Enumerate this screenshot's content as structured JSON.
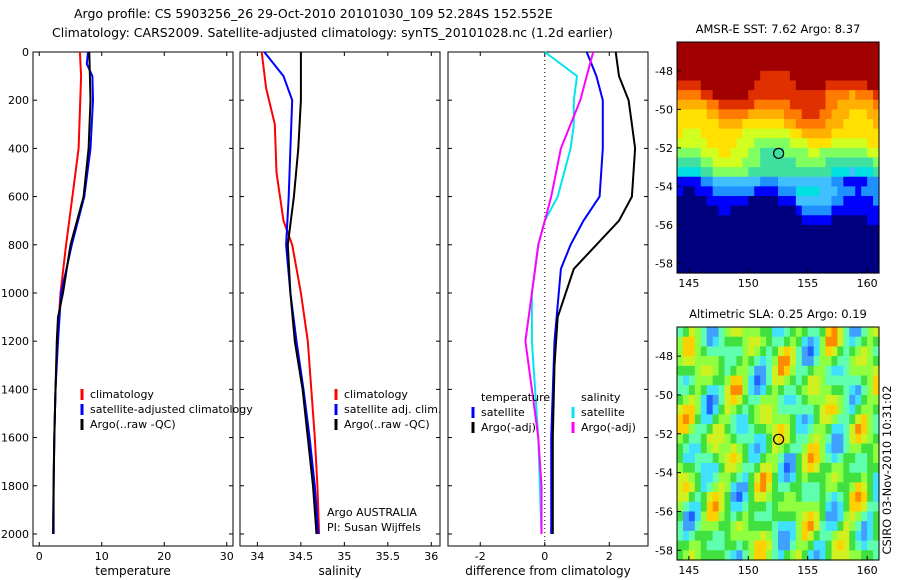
{
  "title": {
    "line1": "Argo profile: CS 5903256_26 29-Oct-2010 20101030_109 52.284S 152.552E",
    "line2": "Climatology: CARS2009. Satellite-adjusted climatology: synTS_20101028.nc (1.2d earlier)"
  },
  "chart_data": [
    {
      "type": "line",
      "xlabel": "temperature",
      "xlim": [
        -1,
        31
      ],
      "xticks": [
        0,
        10,
        20,
        30
      ],
      "ylim": [
        2050,
        0
      ],
      "yticks": [
        0,
        200,
        400,
        600,
        800,
        1000,
        1200,
        1400,
        1600,
        1800,
        2000
      ],
      "y_inverted": true,
      "legend": {
        "placement": "lower-right",
        "entries": [
          "climatology",
          "satellite-adjusted climatology",
          "Argo(..raw -QC)"
        ]
      },
      "series": [
        {
          "name": "climatology",
          "color": "#ff0000",
          "points": [
            [
              6.5,
              0
            ],
            [
              6.7,
              100
            ],
            [
              6.3,
              400
            ],
            [
              5.3,
              600
            ],
            [
              4.3,
              800
            ],
            [
              3.4,
              1000
            ],
            [
              2.9,
              1200
            ],
            [
              2.6,
              1400
            ],
            [
              2.4,
              1600
            ],
            [
              2.3,
              1800
            ],
            [
              2.2,
              2000
            ]
          ]
        },
        {
          "name": "satellite-adjusted climatology",
          "color": "#0000ff",
          "points": [
            [
              7.8,
              0
            ],
            [
              7.6,
              50
            ],
            [
              8.5,
              100
            ],
            [
              8.6,
              200
            ],
            [
              8.2,
              400
            ],
            [
              7.2,
              600
            ],
            [
              5.2,
              800
            ],
            [
              3.5,
              1000
            ],
            [
              3.0,
              1200
            ],
            [
              2.6,
              1400
            ],
            [
              2.4,
              1600
            ],
            [
              2.3,
              1800
            ],
            [
              2.2,
              2000
            ]
          ]
        },
        {
          "name": "Argo(..raw -QC)",
          "color": "#000000",
          "points": [
            [
              8.0,
              0
            ],
            [
              8.1,
              100
            ],
            [
              8.2,
              200
            ],
            [
              7.9,
              400
            ],
            [
              7.1,
              600
            ],
            [
              5.0,
              800
            ],
            [
              3.8,
              1000
            ],
            [
              3.0,
              1100
            ],
            [
              2.8,
              1200
            ],
            [
              2.6,
              1400
            ],
            [
              2.4,
              1600
            ],
            [
              2.3,
              1800
            ],
            [
              2.3,
              2000
            ]
          ]
        }
      ]
    },
    {
      "type": "line",
      "xlabel": "salinity",
      "xlim": [
        33.8,
        36.1
      ],
      "xticks": [
        34,
        34.5,
        35,
        35.5,
        36
      ],
      "ylim": [
        2050,
        0
      ],
      "y_inverted": true,
      "annotation": [
        "Argo AUSTRALIA",
        "PI: Susan Wijffels"
      ],
      "legend": {
        "placement": "lower-right",
        "entries": [
          "climatology",
          "satellite adj. clim.",
          "Argo(..raw -QC)"
        ]
      },
      "series": [
        {
          "name": "climatology",
          "color": "#ff0000",
          "points": [
            [
              34.05,
              0
            ],
            [
              34.1,
              150
            ],
            [
              34.2,
              300
            ],
            [
              34.22,
              500
            ],
            [
              34.3,
              700
            ],
            [
              34.4,
              800
            ],
            [
              34.5,
              1000
            ],
            [
              34.58,
              1200
            ],
            [
              34.62,
              1400
            ],
            [
              34.66,
              1600
            ],
            [
              34.69,
              1800
            ],
            [
              34.71,
              2000
            ]
          ]
        },
        {
          "name": "satellite adj. clim.",
          "color": "#0000ff",
          "points": [
            [
              34.08,
              0
            ],
            [
              34.3,
              100
            ],
            [
              34.4,
              200
            ],
            [
              34.38,
              400
            ],
            [
              34.36,
              600
            ],
            [
              34.33,
              800
            ],
            [
              34.38,
              1000
            ],
            [
              34.45,
              1200
            ],
            [
              34.53,
              1400
            ],
            [
              34.6,
              1600
            ],
            [
              34.66,
              1800
            ],
            [
              34.7,
              2000
            ]
          ]
        },
        {
          "name": "Argo(..raw -QC)",
          "color": "#000000",
          "points": [
            [
              34.5,
              0
            ],
            [
              34.5,
              200
            ],
            [
              34.47,
              400
            ],
            [
              34.42,
              600
            ],
            [
              34.35,
              800
            ],
            [
              34.38,
              1000
            ],
            [
              34.43,
              1200
            ],
            [
              34.52,
              1400
            ],
            [
              34.58,
              1600
            ],
            [
              34.64,
              1800
            ],
            [
              34.68,
              2000
            ]
          ]
        }
      ]
    },
    {
      "type": "line",
      "xlabel": "difference from climatology",
      "xlim": [
        -3,
        3.2
      ],
      "xticks": [
        -2,
        0,
        2
      ],
      "ylim": [
        2050,
        0
      ],
      "y_inverted": true,
      "legend": {
        "placement": "lower-center",
        "columns": [
          {
            "header": "temperature",
            "entries": [
              "satellite",
              "Argo(-adj)"
            ]
          },
          {
            "header": "salinity",
            "entries": [
              "satellite",
              "Argo(-adj)"
            ]
          }
        ]
      },
      "series": [
        {
          "name": "temperature satellite",
          "color": "#0000ff",
          "points": [
            [
              1.3,
              0
            ],
            [
              1.6,
              100
            ],
            [
              1.8,
              200
            ],
            [
              1.8,
              400
            ],
            [
              1.7,
              600
            ],
            [
              1.2,
              700
            ],
            [
              0.8,
              800
            ],
            [
              0.5,
              900
            ],
            [
              0.3,
              1200
            ],
            [
              0.2,
              1600
            ],
            [
              0.2,
              2000
            ]
          ]
        },
        {
          "name": "temperature Argo(-adj)",
          "color": "#000000",
          "points": [
            [
              2.2,
              0
            ],
            [
              2.3,
              100
            ],
            [
              2.6,
              200
            ],
            [
              2.7,
              300
            ],
            [
              2.8,
              400
            ],
            [
              2.7,
              600
            ],
            [
              2.3,
              700
            ],
            [
              1.6,
              800
            ],
            [
              0.9,
              900
            ],
            [
              0.4,
              1100
            ],
            [
              0.3,
              1300
            ],
            [
              0.25,
              1600
            ],
            [
              0.25,
              2000
            ]
          ]
        },
        {
          "name": "salinity satellite",
          "color": "#00e5ee",
          "points": [
            [
              0.0,
              0
            ],
            [
              0.5,
              50
            ],
            [
              1.0,
              100
            ],
            [
              0.9,
              200
            ],
            [
              0.9,
              300
            ],
            [
              0.8,
              400
            ],
            [
              0.4,
              600
            ],
            [
              0.0,
              700
            ],
            [
              -0.2,
              800
            ],
            [
              -0.4,
              1000
            ],
            [
              -0.4,
              1200
            ],
            [
              -0.2,
              1600
            ],
            [
              -0.1,
              2000
            ]
          ]
        },
        {
          "name": "salinity Argo(-adj)",
          "color": "#ff00ff",
          "points": [
            [
              1.5,
              0
            ],
            [
              1.3,
              100
            ],
            [
              1.1,
              200
            ],
            [
              0.8,
              300
            ],
            [
              0.5,
              400
            ],
            [
              0.2,
              600
            ],
            [
              0.0,
              700
            ],
            [
              -0.2,
              800
            ],
            [
              -0.4,
              1000
            ],
            [
              -0.6,
              1200
            ],
            [
              -0.4,
              1400
            ],
            [
              -0.2,
              1600
            ],
            [
              -0.1,
              1800
            ],
            [
              -0.1,
              2000
            ]
          ]
        }
      ]
    },
    {
      "type": "heatmap",
      "title": "AMSR-E SST: 7.62  Argo: 8.37",
      "xlim": [
        144,
        161
      ],
      "xticks": [
        145,
        150,
        155,
        160
      ],
      "ylim": [
        -58.5,
        -46.5
      ],
      "yticks": [
        -48,
        -50,
        -52,
        -54,
        -56,
        -58
      ],
      "marker": {
        "lon": 152.552,
        "lat": -52.284
      }
    },
    {
      "type": "heatmap",
      "title": "Altimetric SLA: 0.25  Argo: 0.19",
      "xlim": [
        144,
        161
      ],
      "xticks": [
        145,
        150,
        155,
        160
      ],
      "ylim": [
        -58.5,
        -46.5
      ],
      "yticks": [
        -48,
        -50,
        -52,
        -54,
        -56,
        -58
      ],
      "marker": {
        "lon": 152.552,
        "lat": -52.284
      }
    }
  ],
  "footer": "CSIRO 03-Nov-2010 10:31:02"
}
